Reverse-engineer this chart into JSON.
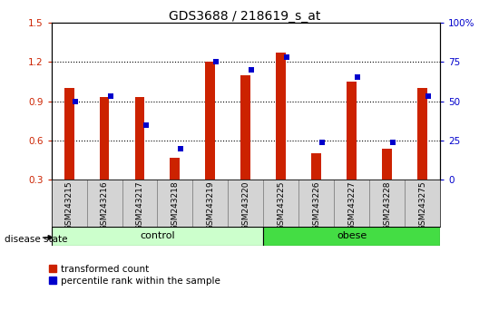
{
  "title": "GDS3688 / 218619_s_at",
  "samples": [
    "GSM243215",
    "GSM243216",
    "GSM243217",
    "GSM243218",
    "GSM243219",
    "GSM243220",
    "GSM243225",
    "GSM243226",
    "GSM243227",
    "GSM243228",
    "GSM243275"
  ],
  "red_values": [
    1.0,
    0.93,
    0.93,
    0.47,
    1.2,
    1.1,
    1.27,
    0.5,
    1.05,
    0.54,
    1.0
  ],
  "blue_percentiles": [
    50,
    53,
    35,
    20,
    75,
    70,
    78,
    24,
    65,
    24,
    53
  ],
  "groups": [
    {
      "label": "control",
      "start": 0,
      "end": 5,
      "color": "#ccffcc"
    },
    {
      "label": "obese",
      "start": 6,
      "end": 10,
      "color": "#44dd44"
    }
  ],
  "ylim_left": [
    0.3,
    1.5
  ],
  "ylim_right": [
    0,
    100
  ],
  "yticks_left": [
    0.3,
    0.6,
    0.9,
    1.2,
    1.5
  ],
  "yticks_right": [
    0,
    25,
    50,
    75,
    100
  ],
  "ytick_labels_right": [
    "0",
    "25",
    "50",
    "75",
    "100%"
  ],
  "red_color": "#cc2200",
  "blue_color": "#0000cc",
  "legend_items": [
    "transformed count",
    "percentile rank within the sample"
  ],
  "disease_state_label": "disease state",
  "title_fontsize": 10,
  "tick_fontsize": 7.5
}
